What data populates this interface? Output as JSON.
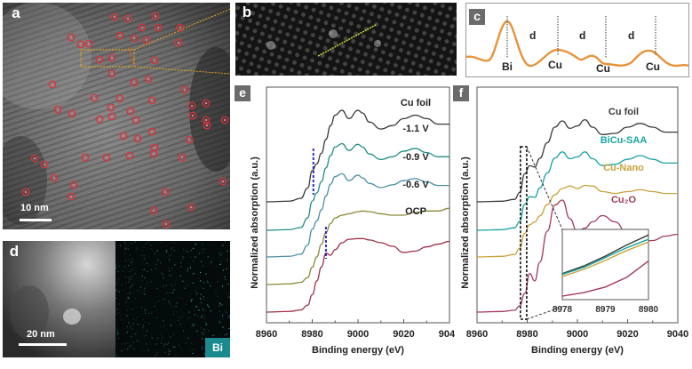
{
  "figure": {
    "panel_a": {
      "label": "a",
      "scale_bar": "10 nm"
    },
    "panel_b": {
      "label": "b"
    },
    "panel_c": {
      "label": "c",
      "peaks": [
        "Bi",
        "Cu",
        "Cu",
        "Cu"
      ],
      "spacing_label": "d"
    },
    "panel_d": {
      "label": "d",
      "scale_bar": "20 nm",
      "element_tag": "Bi"
    },
    "panel_e": {
      "label": "e"
    },
    "panel_f": {
      "label": "f"
    }
  },
  "colors": {
    "cu_foil": "#3a3a3a",
    "v11": "#1f8f84",
    "v09": "#4a8fa6",
    "v06": "#8a8a3a",
    "ocp": "#a0304a",
    "bicu_saa": "#17a3a3",
    "cu_nano": "#c9a23a",
    "cu2o": "#a33a5a",
    "marker_blue": "#2a2ad0",
    "profile_orange": "#e8923a",
    "bi_tag": "#1b8a8e"
  },
  "chart_data": [
    {
      "type": "line",
      "panel": "e",
      "title": "",
      "xlabel": "Binding energy (eV)",
      "ylabel": "Normalized absorption (a.u.)",
      "xlim": [
        8960,
        9040
      ],
      "xticks": [
        "8960",
        "8980",
        "9000",
        "9020",
        "9040"
      ],
      "grid": false,
      "legend": "inline-right",
      "x": [
        8960,
        8970,
        8975,
        8978,
        8980,
        8982,
        8984,
        8986,
        8988,
        8990,
        8993,
        8996,
        9000,
        9002,
        9005,
        9010,
        9015,
        9020,
        9025,
        9030,
        9035,
        9040
      ],
      "series": [
        {
          "name": "Cu foil",
          "color_key": "cu_foil",
          "offset": 4.0,
          "values": [
            0.0,
            0.01,
            0.05,
            0.2,
            0.45,
            0.55,
            0.7,
            0.9,
            1.1,
            1.25,
            1.32,
            1.2,
            1.32,
            1.28,
            1.15,
            1.05,
            1.1,
            1.2,
            1.25,
            1.2,
            1.12,
            1.12
          ]
        },
        {
          "name": "-1.1 V",
          "color_key": "v11",
          "offset": 3.0,
          "values": [
            0.0,
            0.01,
            0.04,
            0.18,
            0.42,
            0.54,
            0.7,
            0.9,
            1.08,
            1.2,
            1.25,
            1.15,
            1.24,
            1.2,
            1.1,
            1.02,
            1.06,
            1.14,
            1.18,
            1.12,
            1.06,
            1.06
          ]
        },
        {
          "name": "-0.9 V",
          "color_key": "v09",
          "offset": 2.0,
          "values": [
            0.0,
            0.01,
            0.04,
            0.17,
            0.4,
            0.52,
            0.68,
            0.88,
            1.05,
            1.16,
            1.2,
            1.1,
            1.18,
            1.14,
            1.06,
            1.0,
            1.04,
            1.1,
            1.13,
            1.08,
            1.03,
            1.03
          ]
        },
        {
          "name": "-0.6 V",
          "color_key": "v06",
          "offset": 1.0,
          "values": [
            0.0,
            0.01,
            0.03,
            0.1,
            0.25,
            0.4,
            0.58,
            0.75,
            0.88,
            0.96,
            1.0,
            1.02,
            1.05,
            1.06,
            1.05,
            1.02,
            1.0,
            1.0,
            1.04,
            1.06,
            1.06,
            1.1
          ]
        },
        {
          "name": "OCP",
          "color_key": "ocp",
          "offset": 0.0,
          "values": [
            0.0,
            0.01,
            0.03,
            0.1,
            0.25,
            0.45,
            0.65,
            0.85,
            0.82,
            0.9,
            1.0,
            1.05,
            1.06,
            1.06,
            1.04,
            1.0,
            0.95,
            0.86,
            0.88,
            0.94,
            0.98,
            1.02
          ]
        }
      ],
      "annotations": [
        {
          "type": "vline-dashed",
          "x": 8980.5,
          "color_key": "marker_blue"
        },
        {
          "type": "vline-dashed",
          "x": 8986,
          "color_key": "marker_blue"
        }
      ]
    },
    {
      "type": "line",
      "panel": "f",
      "title": "",
      "xlabel": "Binding energy (eV)",
      "ylabel": "Normalized absorption (a.u.)",
      "xlim": [
        8960,
        9040
      ],
      "xticks": [
        "8960",
        "8980",
        "9000",
        "9020",
        "9040"
      ],
      "grid": false,
      "legend": "inline-right",
      "x": [
        8960,
        8970,
        8975,
        8977,
        8979,
        8981,
        8983,
        8985,
        8988,
        8991,
        8994,
        8997,
        9000,
        9003,
        9006,
        9010,
        9015,
        9020,
        9025,
        9030,
        9035,
        9040
      ],
      "series": [
        {
          "name": "Cu foil",
          "color_key": "cu_foil",
          "offset": 3.0,
          "values": [
            0.0,
            0.01,
            0.04,
            0.15,
            0.45,
            0.58,
            0.56,
            0.7,
            0.95,
            1.2,
            1.3,
            1.18,
            1.22,
            1.32,
            1.2,
            1.08,
            1.1,
            1.2,
            1.26,
            1.2,
            1.12,
            1.12
          ]
        },
        {
          "name": "BiCu-SAA",
          "color_key": "bicu_saa",
          "offset": 2.0,
          "values": [
            0.0,
            0.01,
            0.04,
            0.14,
            0.42,
            0.54,
            0.53,
            0.68,
            0.92,
            1.16,
            1.26,
            1.15,
            1.18,
            1.26,
            1.15,
            1.04,
            1.06,
            1.14,
            1.2,
            1.14,
            1.08,
            1.08
          ]
        },
        {
          "name": "Cu-Nano",
          "color_key": "cu_nano",
          "offset": 1.0,
          "values": [
            0.0,
            0.01,
            0.04,
            0.14,
            0.38,
            0.52,
            0.56,
            0.66,
            0.84,
            1.0,
            1.1,
            1.14,
            1.1,
            1.15,
            1.14,
            1.05,
            1.02,
            1.05,
            1.08,
            1.05,
            1.02,
            1.02
          ]
        },
        {
          "name": "Cu₂O",
          "color_key": "cu2o",
          "offset": 0.0,
          "values": [
            0.0,
            0.01,
            0.03,
            0.1,
            0.3,
            0.62,
            0.5,
            0.8,
            1.3,
            1.72,
            1.8,
            1.5,
            1.28,
            1.35,
            1.45,
            1.55,
            1.45,
            1.25,
            1.12,
            1.15,
            1.22,
            1.25
          ]
        }
      ],
      "annotations": [
        {
          "type": "dashed-box",
          "x_range": [
            8978,
            8980
          ],
          "label": "zoom region"
        }
      ],
      "inset": {
        "xlim": [
          8978,
          8980
        ],
        "xticks": [
          "8978",
          "8979",
          "8980"
        ],
        "x": [
          8978,
          8978.5,
          8979,
          8979.5,
          8980
        ],
        "series": [
          {
            "name": "Cu foil",
            "color_key": "cu_foil",
            "values": [
              0.37,
              0.48,
              0.62,
              0.78,
              0.92
            ]
          },
          {
            "name": "BiCu-SAA",
            "color_key": "bicu_saa",
            "values": [
              0.36,
              0.46,
              0.6,
              0.74,
              0.86
            ]
          },
          {
            "name": "Cu-Nano",
            "color_key": "cu_nano",
            "values": [
              0.33,
              0.43,
              0.56,
              0.7,
              0.82
            ]
          },
          {
            "name": "Cu₂O",
            "color_key": "cu2o",
            "values": [
              0.05,
              0.1,
              0.18,
              0.32,
              0.55
            ]
          }
        ],
        "ylim": [
          0,
          1
        ]
      }
    }
  ]
}
